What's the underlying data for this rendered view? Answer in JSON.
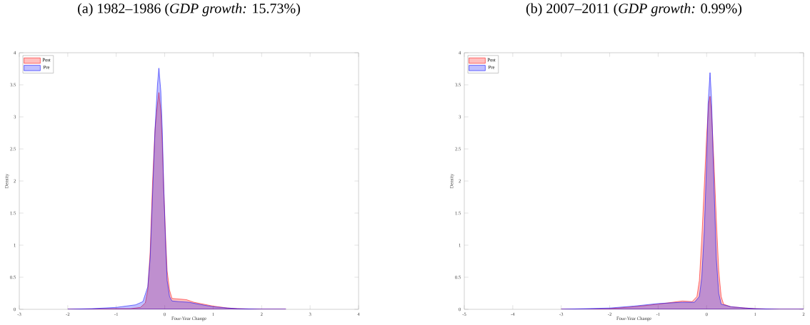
{
  "chart_data": [
    {
      "type": "area",
      "title": "(a) 1982–1986 (*GDP growth:* 15.73%)",
      "xlabel": "Four-Year Change",
      "ylabel": "Density",
      "xlim": [
        -3,
        4
      ],
      "ylim": [
        0,
        4
      ],
      "xticks": [
        -3,
        -2,
        -1,
        0,
        1,
        2,
        3,
        4
      ],
      "yticks": [
        0,
        0.5,
        1,
        1.5,
        2,
        2.5,
        3,
        3.5,
        4
      ],
      "legend": "top left",
      "series": [
        {
          "name": "Post",
          "color": "#ff0000",
          "x": [
            -2.0,
            -1.0,
            -0.7,
            -0.5,
            -0.4,
            -0.35,
            -0.3,
            -0.25,
            -0.2,
            -0.15,
            -0.12,
            -0.08,
            -0.05,
            -0.02,
            0.02,
            0.05,
            0.1,
            0.15,
            0.3,
            0.45,
            0.6,
            0.8,
            1.0,
            1.3,
            1.5,
            2.0,
            2.5
          ],
          "values": [
            0,
            0.01,
            0.01,
            0.03,
            0.1,
            0.3,
            0.9,
            2.0,
            2.8,
            3.2,
            3.38,
            3.1,
            2.6,
            1.9,
            1.1,
            0.6,
            0.3,
            0.17,
            0.16,
            0.15,
            0.11,
            0.08,
            0.05,
            0.02,
            0.01,
            0,
            0
          ]
        },
        {
          "name": "Pre",
          "color": "#0000ff",
          "x": [
            -2.0,
            -1.5,
            -1.0,
            -0.8,
            -0.6,
            -0.45,
            -0.35,
            -0.3,
            -0.25,
            -0.2,
            -0.15,
            -0.12,
            -0.08,
            -0.05,
            -0.02,
            0.02,
            0.05,
            0.1,
            0.15,
            0.3,
            0.5,
            0.7,
            1.0,
            1.3,
            1.5,
            2.0,
            2.5
          ],
          "values": [
            0,
            0.01,
            0.03,
            0.05,
            0.07,
            0.12,
            0.35,
            0.8,
            1.8,
            2.8,
            3.5,
            3.76,
            3.4,
            2.8,
            1.9,
            1.0,
            0.45,
            0.2,
            0.13,
            0.12,
            0.11,
            0.08,
            0.04,
            0.02,
            0.01,
            0,
            0
          ]
        }
      ]
    },
    {
      "type": "area",
      "title": "(b) 2007–2011 (*GDP growth:* 0.99%)",
      "xlabel": "Four-Year Change",
      "ylabel": "Density",
      "xlim": [
        -5,
        2
      ],
      "ylim": [
        0,
        4
      ],
      "xticks": [
        -5,
        -4,
        -3,
        -2,
        -1,
        0,
        1,
        2
      ],
      "yticks": [
        0,
        0.5,
        1,
        1.5,
        2,
        2.5,
        3,
        3.5,
        4
      ],
      "legend": "top left",
      "series": [
        {
          "name": "Post",
          "color": "#ff0000",
          "x": [
            -3,
            -2.5,
            -2,
            -1.5,
            -1.0,
            -0.5,
            -0.3,
            -0.2,
            -0.15,
            -0.1,
            -0.05,
            0,
            0.04,
            0.07,
            0.1,
            0.15,
            0.2,
            0.25,
            0.3,
            0.35,
            0.5,
            0.8,
            1.0,
            1.5,
            2
          ],
          "values": [
            0,
            0,
            0.01,
            0.04,
            0.08,
            0.13,
            0.12,
            0.2,
            0.45,
            1.1,
            1.9,
            2.7,
            3.2,
            3.32,
            3.1,
            2.3,
            1.4,
            0.6,
            0.2,
            0.08,
            0.04,
            0.02,
            0.01,
            0,
            0
          ]
        },
        {
          "name": "Pre",
          "color": "#0000ff",
          "x": [
            -3,
            -2.5,
            -2,
            -1.5,
            -1.0,
            -0.5,
            -0.25,
            -0.15,
            -0.1,
            -0.05,
            0,
            0.03,
            0.07,
            0.1,
            0.13,
            0.17,
            0.2,
            0.25,
            0.3,
            0.5,
            0.8,
            1.0,
            1.5,
            2
          ],
          "values": [
            0,
            0.01,
            0.02,
            0.05,
            0.09,
            0.11,
            0.11,
            0.2,
            0.5,
            1.2,
            2.3,
            3.2,
            3.69,
            3.3,
            2.5,
            1.5,
            0.8,
            0.25,
            0.08,
            0.04,
            0.02,
            0.01,
            0,
            0
          ]
        }
      ]
    }
  ]
}
